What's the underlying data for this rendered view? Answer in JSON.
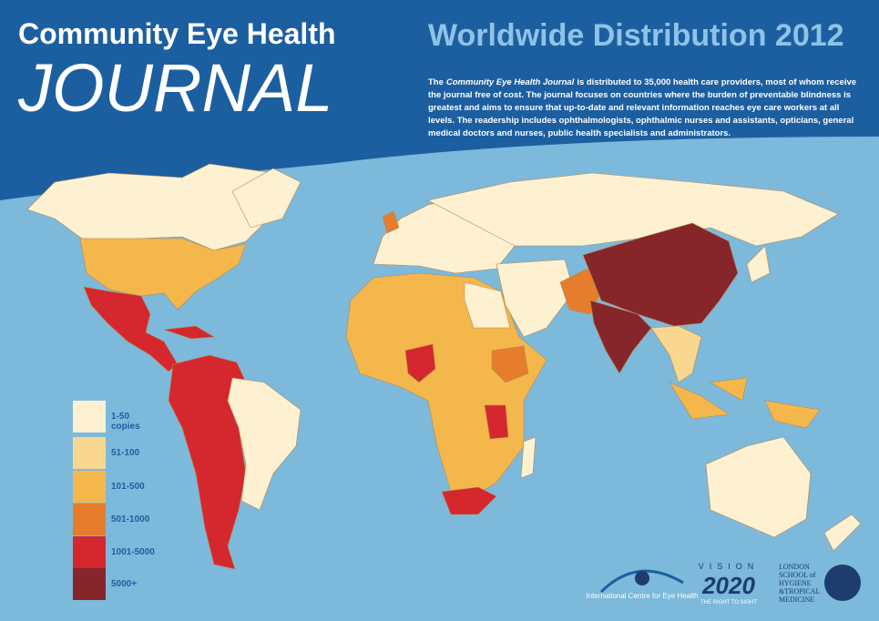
{
  "header": {
    "title": "Community Eye Health",
    "journal": "JOURNAL",
    "heading": "Worldwide Distribution 2012",
    "description": {
      "lead": "The",
      "journal_name": "Community Eye Health Journal",
      "body": "is distributed to 35,000 health care providers, most of whom receive the journal free of cost. The journal focuses on countries where the burden of preventable blindness is greatest and aims to ensure that up-to-date and relevant information reaches eye care workers at all levels. The readership includes ophthalmologists, ophthalmic nurses and assistants, opticians, general medical doctors and nurses, public health specialists and administrators."
    }
  },
  "legend": {
    "items": [
      {
        "label": "1-50",
        "note": "copies",
        "color": "#fdf1d2"
      },
      {
        "label": "51-100",
        "color": "#f9d790"
      },
      {
        "label": "101-500",
        "color": "#f4b74c"
      },
      {
        "label": "501-1000",
        "color": "#e57d2d"
      },
      {
        "label": "1001-5000",
        "color": "#d4282e"
      },
      {
        "label": "5000+",
        "color": "#86262a"
      }
    ]
  },
  "logos": {
    "iceh": "International Centre for Eye Health",
    "vision": "VISION",
    "year": "2020",
    "tagline": "THE RIGHT TO SIGHT",
    "lshtm": [
      "LONDON",
      "SCHOOL of",
      "HYGIENE",
      "&TROPICAL",
      "MEDICINE"
    ]
  }
}
